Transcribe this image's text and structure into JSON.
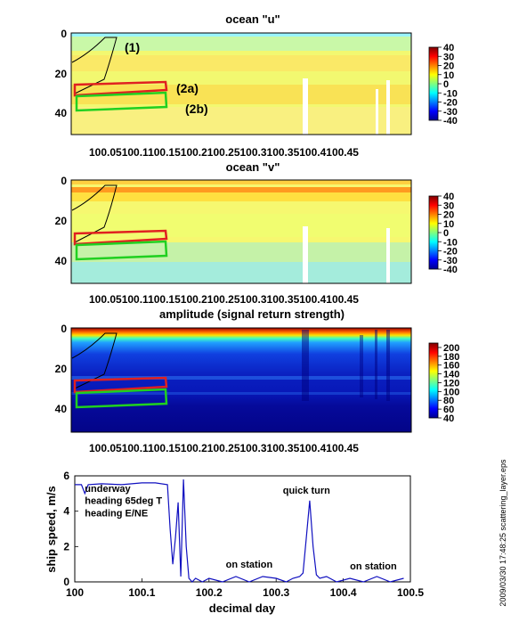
{
  "footer_text": "2009/03/30 17:48:25   scattering_layer.eps",
  "chart_data": [
    {
      "type": "heatmap",
      "title": "ocean \"u\"",
      "x_tick_labels": [
        "100.05",
        "100.1",
        "100.15",
        "100.2",
        "100.25",
        "100.3",
        "100.35",
        "100.4",
        "100.45"
      ],
      "x_tick_text": "100.05100.1100.15100.2100.25100.3100.35100.4100.45",
      "x_range": [
        100.0,
        100.5
      ],
      "y_ticks": [
        0,
        20,
        40
      ],
      "y_range": [
        0,
        52
      ],
      "y_reversed": true,
      "colorbar_ticks": [
        40,
        30,
        20,
        10,
        0,
        -10,
        -20,
        -30,
        -40
      ],
      "colorbar_range": [
        -40,
        40
      ],
      "colormap": "jet",
      "annotations": [
        {
          "label": "(1)",
          "color": "#000000"
        },
        {
          "label": "(2a)",
          "color": "#e02020"
        },
        {
          "label": "(2b)",
          "color": "#20d020"
        }
      ]
    },
    {
      "type": "heatmap",
      "title": "ocean \"v\"",
      "x_tick_labels": [
        "100.05",
        "100.1",
        "100.15",
        "100.2",
        "100.25",
        "100.3",
        "100.35",
        "100.4",
        "100.45"
      ],
      "x_tick_text": "100.05100.1100.15100.2100.25100.3100.35100.4100.45",
      "x_range": [
        100.0,
        100.5
      ],
      "y_ticks": [
        0,
        20,
        40
      ],
      "y_range": [
        0,
        52
      ],
      "y_reversed": true,
      "colorbar_ticks": [
        40,
        30,
        20,
        10,
        0,
        -10,
        -20,
        -30,
        -40
      ],
      "colorbar_range": [
        -40,
        40
      ],
      "colormap": "jet"
    },
    {
      "type": "heatmap",
      "title": "amplitude (signal return strength)",
      "x_tick_labels": [
        "100.05",
        "100.1",
        "100.15",
        "100.2",
        "100.25",
        "100.3",
        "100.35",
        "100.4",
        "100.45"
      ],
      "x_tick_text": "100.05100.1100.15100.2100.25100.3100.35100.4100.45",
      "x_range": [
        100.0,
        100.5
      ],
      "y_ticks": [
        0,
        20,
        40
      ],
      "y_range": [
        0,
        52
      ],
      "y_reversed": true,
      "colorbar_ticks": [
        200,
        180,
        160,
        140,
        120,
        100,
        80,
        60,
        40
      ],
      "colorbar_range": [
        40,
        210
      ],
      "colormap": "jet"
    },
    {
      "type": "line",
      "xlabel": "decimal day",
      "ylabel": "ship speed, m/s",
      "xlim": [
        100,
        100.5
      ],
      "ylim": [
        0,
        6
      ],
      "x_ticks": [
        100,
        100.1,
        100.2,
        100.3,
        100.4,
        100.5
      ],
      "x_tick_labels": [
        "100",
        "100.1",
        "100.2",
        "100.3",
        "100.4",
        "100.5"
      ],
      "y_ticks": [
        0,
        2,
        4,
        6
      ],
      "series": [
        {
          "color": "#1010c0",
          "x": [
            100.0,
            100.01,
            100.015,
            100.02,
            100.04,
            100.07,
            100.1,
            100.12,
            100.138,
            100.142,
            100.146,
            100.15,
            100.154,
            100.158,
            100.162,
            100.166,
            100.17,
            100.175,
            100.18,
            100.19,
            100.2,
            100.22,
            100.24,
            100.26,
            100.28,
            100.3,
            100.315,
            100.325,
            100.335,
            100.34,
            100.345,
            100.35,
            100.355,
            100.36,
            100.365,
            100.375,
            100.39,
            100.41,
            100.43,
            100.45,
            100.47,
            100.49
          ],
          "y": [
            5.5,
            5.5,
            5.0,
            5.5,
            5.55,
            5.5,
            5.6,
            5.6,
            5.5,
            3.0,
            1.0,
            2.5,
            4.5,
            0.3,
            5.8,
            2.0,
            0.2,
            0.0,
            0.2,
            0.0,
            0.2,
            0.0,
            0.3,
            0.0,
            0.3,
            0.2,
            0.0,
            0.2,
            0.3,
            0.5,
            2.5,
            4.6,
            2.0,
            0.4,
            0.2,
            0.3,
            0.0,
            0.2,
            0.0,
            0.3,
            0.0,
            0.2
          ]
        }
      ],
      "annotations": [
        {
          "label": "underway",
          "x": 100.015,
          "y": 5.1
        },
        {
          "label": "heading 65deg T",
          "x": 100.015,
          "y": 4.4
        },
        {
          "label": "heading E/NE",
          "x": 100.015,
          "y": 3.7
        },
        {
          "label": "on station",
          "x": 100.225,
          "y": 0.8
        },
        {
          "label": "quick turn",
          "x": 100.31,
          "y": 5.0
        },
        {
          "label": "on station",
          "x": 100.41,
          "y": 0.7
        }
      ]
    }
  ]
}
